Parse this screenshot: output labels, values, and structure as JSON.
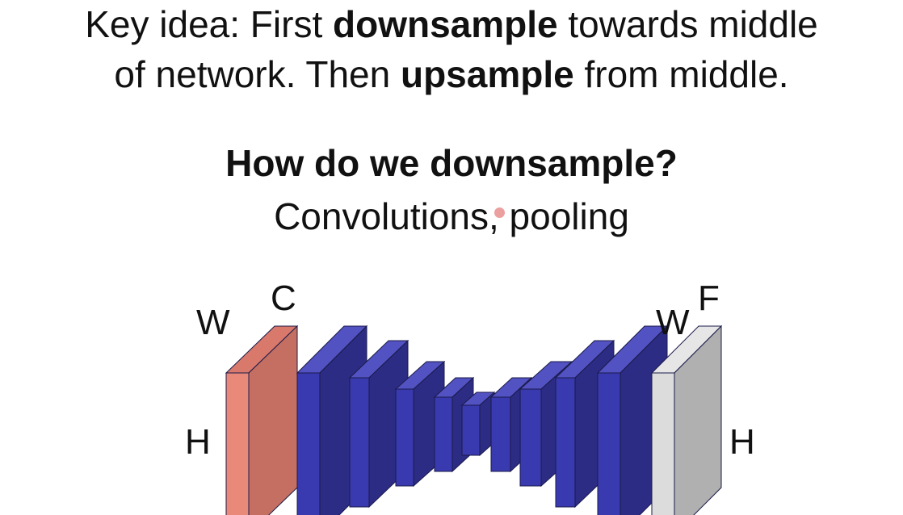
{
  "key_idea": {
    "line1": {
      "prefix": "Key idea: First ",
      "bold": "downsample",
      "suffix": " towards middle"
    },
    "line2": {
      "prefix": "of network. Then ",
      "bold": "upsample",
      "suffix": " from middle."
    }
  },
  "question": "How do we downsample?",
  "answer": "Convolutions, pooling",
  "diagram": {
    "labels": {
      "w_left": "W",
      "c": "C",
      "h_left": "H",
      "w_right": "W",
      "f": "F",
      "h_right": "H"
    },
    "colors": {
      "input": "#e8897a",
      "input_side": "#c56f62",
      "conv_front": "#3a3ab0",
      "conv_side": "#2c2c85",
      "conv_top": "#5252c2",
      "output_front": "#dcdcdc",
      "output_side": "#b0b0b0"
    }
  }
}
